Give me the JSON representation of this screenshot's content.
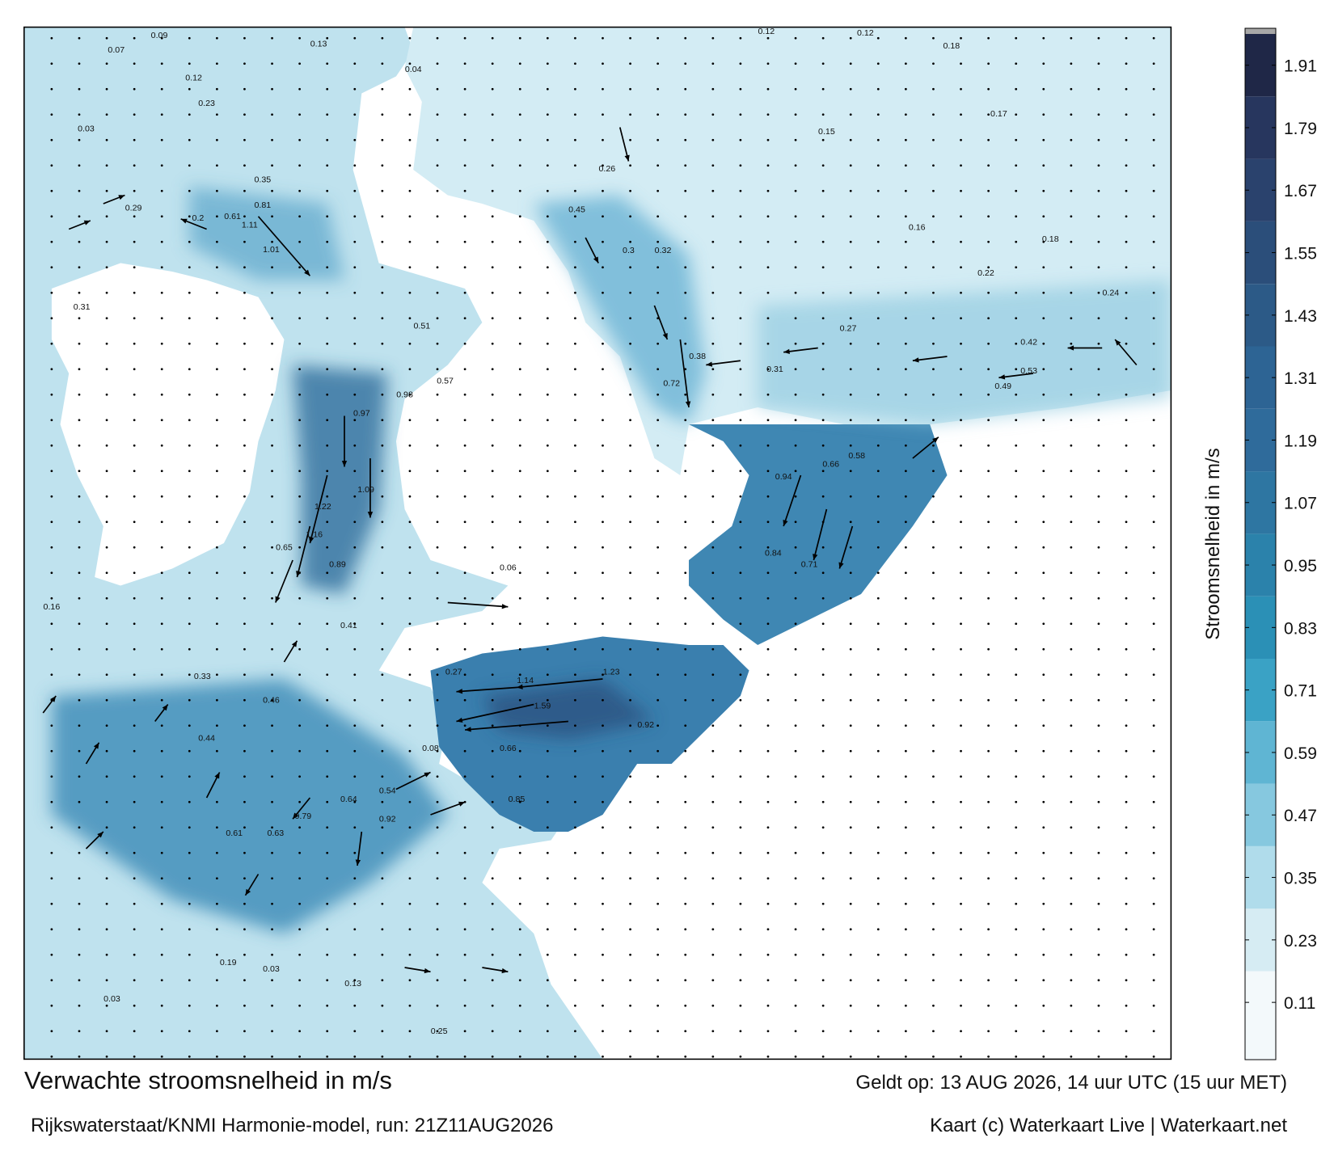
{
  "header": {
    "title": "Verwachte stroomsnelheid in m/s",
    "valid": "Geldt op: 13 AUG 2026, 14 uur UTC (15 uur MET)"
  },
  "footer": {
    "source": "Rijkswaterstaat/KNMI Harmonie-model, run: 21Z11AUG2026",
    "credit": "Kaart (c) Waterkaart Live | Waterkaart.net"
  },
  "colorbar": {
    "label": "Stroomsnelheid in m/s",
    "lim": [
      0,
      1.97
    ],
    "ticks": [
      0.11,
      0.23,
      0.35,
      0.47,
      0.59,
      0.71,
      0.83,
      0.95,
      1.07,
      1.19,
      1.31,
      1.43,
      1.55,
      1.67,
      1.79,
      1.91
    ],
    "colors": [
      "#f3f9fb",
      "#d6ecf3",
      "#b0dceb",
      "#86c8df",
      "#5fb5d3",
      "#3aa2c5",
      "#2b90b6",
      "#2b82ab",
      "#2e76a2",
      "#2f6b9b",
      "#2d6494",
      "#2c5a87",
      "#2b4e7a",
      "#2a426d",
      "#27365e",
      "#1f2747"
    ]
  },
  "map": {
    "labels": [
      "0.09",
      "0.13",
      "0.07",
      "0.12",
      "0.23",
      "0.35",
      "0.81",
      "1.11",
      "1.01",
      "0.61",
      "0.29",
      "0.2",
      "0.31",
      "0.51",
      "0.57",
      "0.98",
      "0.97",
      "1.09",
      "1.22",
      "1.16",
      "0.65",
      "0.89",
      "0.41",
      "0.33",
      "0.46",
      "0.44",
      "0.61",
      "0.63",
      "0.79",
      "0.64",
      "0.92",
      "0.54",
      "1.14",
      "1.59",
      "1.23",
      "0.92",
      "0.85",
      "0.66",
      "0.94",
      "0.66",
      "0.84",
      "0.71",
      "0.58",
      "0.49",
      "0.53",
      "0.42",
      "0.31",
      "0.38",
      "0.72",
      "0.45",
      "0.3",
      "0.32",
      "0.26",
      "0.18",
      "0.17",
      "0.16",
      "0.22",
      "0.27",
      "0.15",
      "0.03",
      "0.03",
      "0.03",
      "0.16",
      "0.19",
      "0.25",
      "0.13",
      "0.06",
      "0.04",
      "0.12",
      "0.12",
      "0.18",
      "0.24",
      "0.08",
      "0.27"
    ]
  }
}
